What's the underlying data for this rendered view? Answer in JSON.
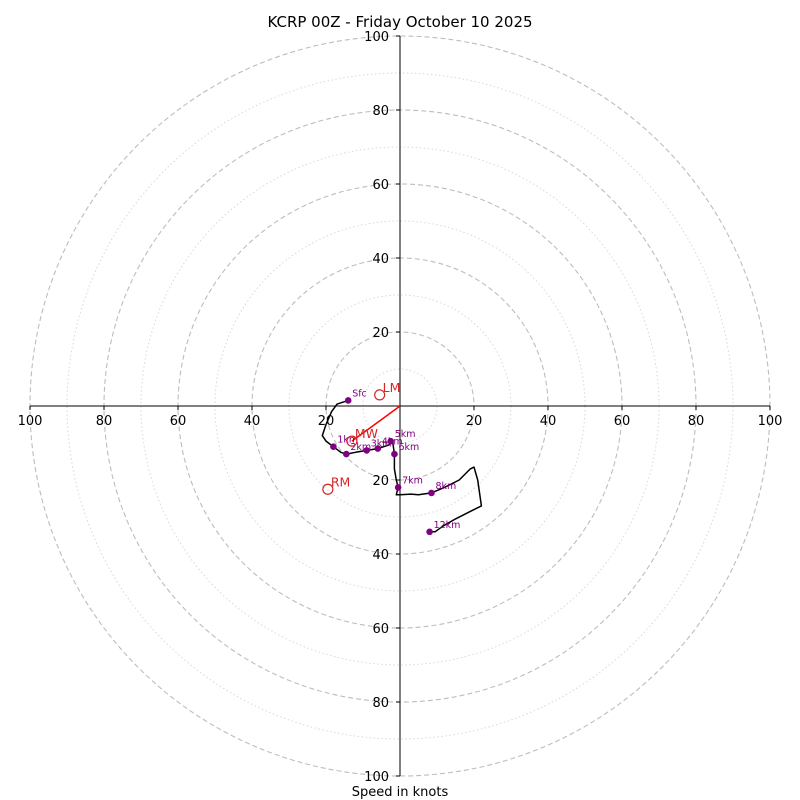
{
  "chart_data": {
    "type": "hodograph",
    "title": "KCRP 00Z - Friday October 10 2025",
    "xlabel": "Speed in knots",
    "units": "knots",
    "range": [
      -100,
      100
    ],
    "ring_major": [
      20,
      40,
      60,
      80,
      100
    ],
    "ring_minor": [
      10,
      30,
      50,
      70,
      90
    ],
    "x_ticks": [
      {
        "value": -100,
        "label": "100"
      },
      {
        "value": -80,
        "label": "80"
      },
      {
        "value": -60,
        "label": "60"
      },
      {
        "value": -40,
        "label": "40"
      },
      {
        "value": -20,
        "label": "20"
      },
      {
        "value": 20,
        "label": "20"
      },
      {
        "value": 40,
        "label": "40"
      },
      {
        "value": 60,
        "label": "60"
      },
      {
        "value": 80,
        "label": "80"
      },
      {
        "value": 100,
        "label": "100"
      }
    ],
    "y_ticks": [
      {
        "value": 100,
        "label": "100"
      },
      {
        "value": 80,
        "label": "80"
      },
      {
        "value": 60,
        "label": "60"
      },
      {
        "value": 40,
        "label": "40"
      },
      {
        "value": 20,
        "label": "20"
      },
      {
        "value": -20,
        "label": "20"
      },
      {
        "value": -40,
        "label": "40"
      },
      {
        "value": -60,
        "label": "60"
      },
      {
        "value": -80,
        "label": "80"
      },
      {
        "value": -100,
        "label": "100"
      }
    ],
    "trace": [
      [
        -14,
        1.5
      ],
      [
        -17,
        0.5
      ],
      [
        -18.5,
        -1.5
      ],
      [
        -20,
        -5
      ],
      [
        -21,
        -8
      ],
      [
        -20,
        -9.5
      ],
      [
        -18,
        -11
      ],
      [
        -16,
        -12.5
      ],
      [
        -14.5,
        -13
      ],
      [
        -12,
        -12.5
      ],
      [
        -9,
        -12
      ],
      [
        -6,
        -11.5
      ],
      [
        -3,
        -10.5
      ],
      [
        -2,
        -9.5
      ],
      [
        -1.5,
        -13
      ],
      [
        -1.5,
        -17
      ],
      [
        -1,
        -20
      ],
      [
        -0.5,
        -22
      ],
      [
        -1,
        -24
      ],
      [
        0,
        -24
      ],
      [
        3,
        -23.8
      ],
      [
        5,
        -24
      ],
      [
        8.5,
        -23.5
      ],
      [
        12,
        -22
      ],
      [
        16,
        -20
      ],
      [
        19,
        -17
      ],
      [
        20,
        -16.5
      ],
      [
        21,
        -20
      ],
      [
        22,
        -27
      ],
      [
        19,
        -28.5
      ],
      [
        15,
        -30.5
      ],
      [
        11.5,
        -32.5
      ],
      [
        9.5,
        -34
      ],
      [
        8.5,
        -34
      ],
      [
        8,
        -34
      ]
    ],
    "levels": [
      {
        "label": "Sfc",
        "u": -14,
        "v": 1.5
      },
      {
        "label": "1km",
        "u": -18,
        "v": -11
      },
      {
        "label": "2km",
        "u": -14.5,
        "v": -13
      },
      {
        "label": "3km",
        "u": -9,
        "v": -12
      },
      {
        "label": "4km",
        "u": -6,
        "v": -11.5
      },
      {
        "label": "5km",
        "u": -2.5,
        "v": -9.5
      },
      {
        "label": "6km",
        "u": -1.5,
        "v": -13
      },
      {
        "label": "7km",
        "u": -0.5,
        "v": -22
      },
      {
        "label": "8km",
        "u": 8.5,
        "v": -23.5
      },
      {
        "label": "12km",
        "u": 8,
        "v": -34
      }
    ],
    "storm_motion": [
      {
        "label": "LM",
        "u": -5.5,
        "v": 3
      },
      {
        "label": "MW",
        "u": -13,
        "v": -9.5
      },
      {
        "label": "RM",
        "u": -19.5,
        "v": -22.5
      }
    ],
    "shear_vector": {
      "from": [
        0,
        0
      ],
      "to": [
        -13,
        -9.5
      ]
    },
    "colors": {
      "ring": "#bdbdbd",
      "trace": "#000000",
      "level": "#800080",
      "storm": "#d62728",
      "shear": "#ff0000"
    }
  }
}
